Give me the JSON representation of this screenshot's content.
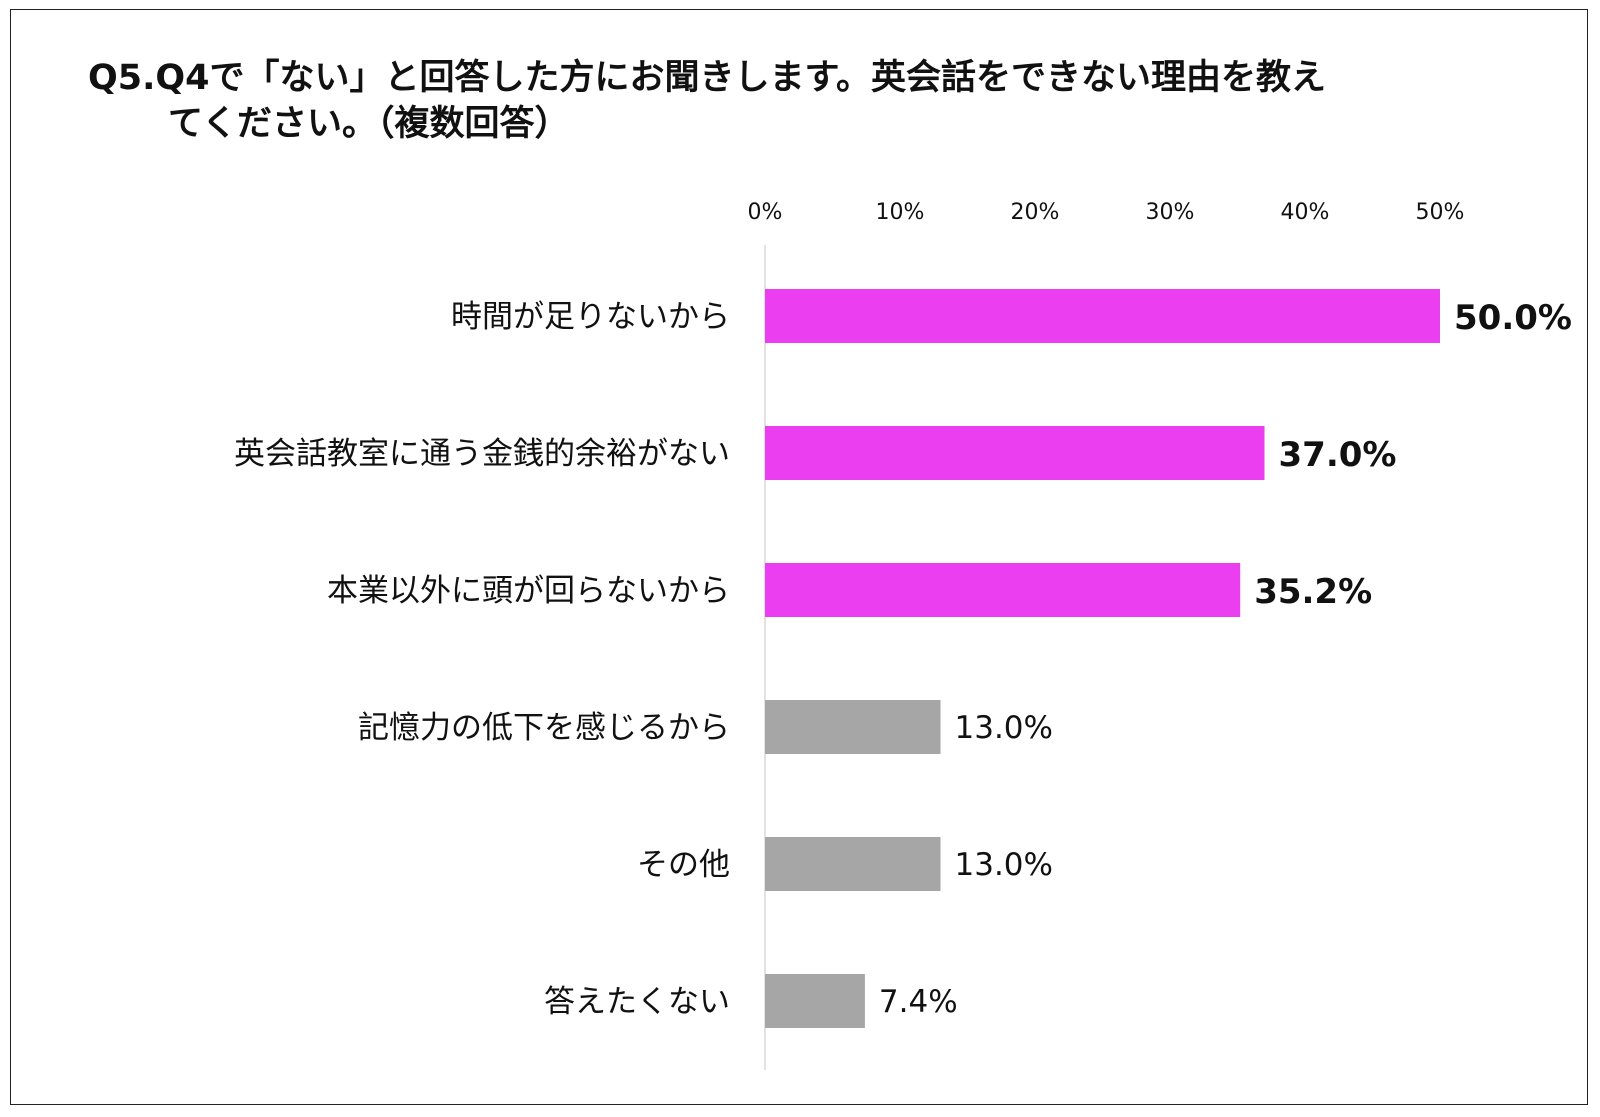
{
  "title_line1": "Q5.Q4で「ない」と回答した方にお聞きします。英会話をできない理由を教え",
  "title_line2": "てください。（複数回答）",
  "chart_data": {
    "type": "bar",
    "orientation": "horizontal",
    "title": "Q5.Q4で「ない」と回答した方にお聞きします。英会話をできない理由を教えてください。（複数回答）",
    "categories": [
      "時間が足りないから",
      "英会話教室に通う金銭的余裕がない",
      "本業以外に頭が回らないから",
      "記憶力の低下を感じるから",
      "その他",
      "答えたくない"
    ],
    "values": [
      50.0,
      37.0,
      35.2,
      13.0,
      13.0,
      7.4
    ],
    "value_labels": [
      "50.0%",
      "37.0%",
      "35.2%",
      "13.0%",
      "13.0%",
      "7.4%"
    ],
    "highlight": [
      true,
      true,
      true,
      false,
      false,
      false
    ],
    "xlim": [
      0,
      50
    ],
    "xticks": [
      0,
      10,
      20,
      30,
      40,
      50
    ],
    "xtick_labels": [
      "0%",
      "10%",
      "20%",
      "30%",
      "40%",
      "50%"
    ],
    "axis_position": "top",
    "grid": false,
    "colors": {
      "highlight": "#EA3EF0",
      "normal": "#A6A6A6",
      "axis": "#D9D9D9"
    }
  }
}
